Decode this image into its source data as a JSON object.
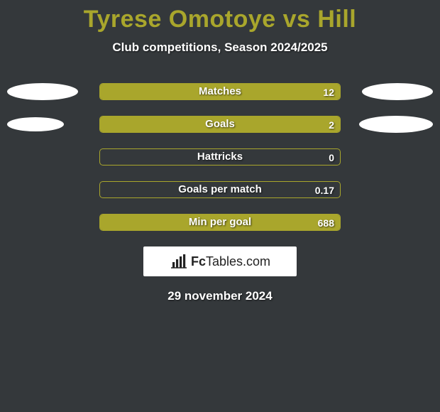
{
  "colors": {
    "background": "#34383b",
    "title": "#a9a62c",
    "subtitle": "#ffffff",
    "bar_border": "#a9a62c",
    "bar_fill": "#a9a62c",
    "ellipse": "#ffffff",
    "date": "#ffffff"
  },
  "title": "Tyrese Omotoye vs Hill",
  "subtitle": "Club competitions, Season 2024/2025",
  "date": "29 november 2024",
  "ellipse_sizes": {
    "row0": {
      "left_w": 100,
      "left_h": 24,
      "right_w": 100,
      "right_h": 24
    },
    "row1": {
      "left_w": 80,
      "left_h": 20,
      "right_w": 104,
      "right_h": 24
    }
  },
  "bar_track_width": 340,
  "stats": [
    {
      "label": "Matches",
      "value": "12",
      "fill_pct": 100,
      "show_ellipses": true,
      "ellipse_key": "row0"
    },
    {
      "label": "Goals",
      "value": "2",
      "fill_pct": 100,
      "show_ellipses": true,
      "ellipse_key": "row1"
    },
    {
      "label": "Hattricks",
      "value": "0",
      "fill_pct": 0,
      "show_ellipses": false
    },
    {
      "label": "Goals per match",
      "value": "0.17",
      "fill_pct": 0,
      "show_ellipses": false
    },
    {
      "label": "Min per goal",
      "value": "688",
      "fill_pct": 100,
      "show_ellipses": false
    }
  ],
  "logo": {
    "brand_a": "Fc",
    "brand_b": "Tables",
    "brand_c": ".com"
  }
}
